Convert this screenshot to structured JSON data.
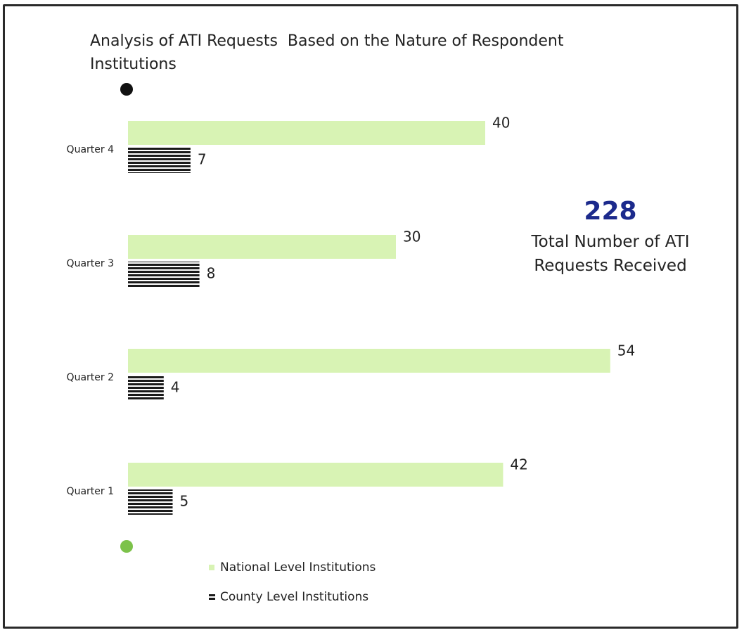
{
  "chart_data": {
    "type": "bar",
    "orientation": "horizontal",
    "title": "Analysis of ATI Requests  Based on the Nature of Respondent Institutions",
    "categories": [
      "Quarter 4",
      "Quarter 3",
      "Quarter 2",
      "Quarter 1"
    ],
    "series": [
      {
        "name": "National Level Institutions",
        "color": "#d8f3b4",
        "values": [
          40,
          30,
          54,
          42
        ]
      },
      {
        "name": "County Level Institutions",
        "color": "#1a1a1a",
        "values": [
          7,
          8,
          4,
          5
        ]
      }
    ],
    "xlim": [
      0,
      60
    ],
    "total": 228,
    "total_label": "Total Number of ATI Requests Received"
  }
}
